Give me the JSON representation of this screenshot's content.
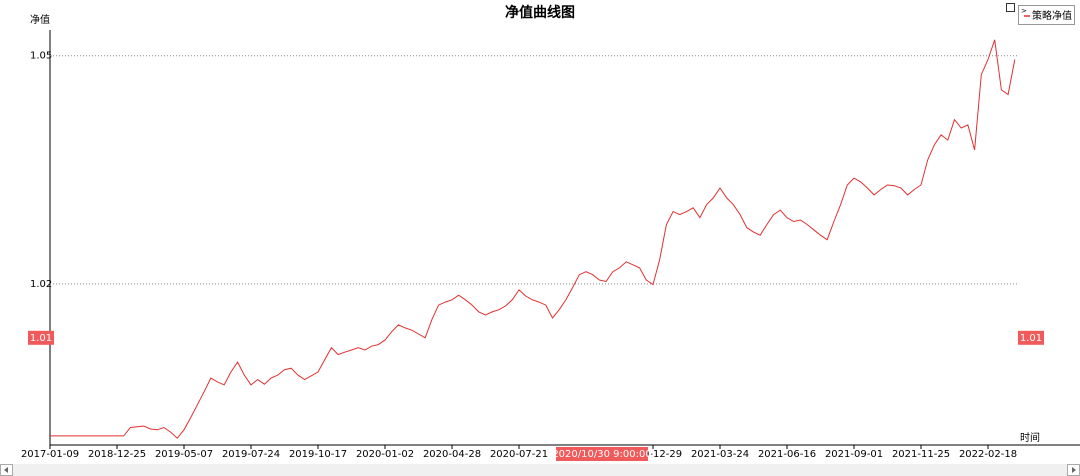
{
  "chart_data": {
    "type": "line",
    "title": "净值曲线图",
    "y_label": "净值",
    "x_label": "时间",
    "categories": [
      "2017-01-09",
      null,
      null,
      null,
      null,
      null,
      null,
      null,
      null,
      null,
      "2018-12-25",
      null,
      null,
      null,
      null,
      null,
      null,
      null,
      null,
      null,
      "2019-05-07",
      null,
      null,
      null,
      null,
      null,
      null,
      null,
      null,
      null,
      "2019-07-24",
      null,
      null,
      null,
      null,
      null,
      null,
      null,
      null,
      null,
      "2019-10-17",
      null,
      null,
      null,
      null,
      null,
      null,
      null,
      null,
      null,
      "2020-01-02",
      null,
      null,
      null,
      null,
      null,
      null,
      null,
      null,
      null,
      "2020-04-28",
      null,
      null,
      null,
      null,
      null,
      null,
      null,
      null,
      null,
      "2020-07-21",
      null,
      null,
      null,
      null,
      null,
      null,
      null,
      null,
      null,
      null,
      null,
      null,
      null,
      null,
      null,
      null,
      null,
      null,
      null,
      "2020-12-29",
      null,
      null,
      null,
      null,
      null,
      null,
      null,
      null,
      null,
      "2021-03-24",
      null,
      null,
      null,
      null,
      null,
      null,
      null,
      null,
      null,
      "2021-06-16",
      null,
      null,
      null,
      null,
      null,
      null,
      null,
      null,
      null,
      "2021-09-01",
      null,
      null,
      null,
      null,
      null,
      null,
      null,
      null,
      null,
      "2021-11-25",
      null,
      null,
      null,
      null,
      null,
      null,
      null,
      null,
      null,
      "2022-02-18",
      null,
      null,
      null,
      null
    ],
    "series": [
      {
        "name": "策略净值",
        "color": "#e03030",
        "values": [
          1.0,
          1.0,
          1.0,
          1.0,
          1.0,
          1.0,
          1.0,
          1.0,
          1.0,
          1.0,
          1.0,
          1.0,
          1.0011,
          1.0012,
          1.0013,
          1.0009,
          1.0008,
          1.0011,
          1.0005,
          0.9997,
          1.0008,
          1.0024,
          1.0041,
          1.0058,
          1.0076,
          1.0071,
          1.0067,
          1.0084,
          1.0097,
          1.008,
          1.0067,
          1.0074,
          1.0068,
          1.0076,
          1.008,
          1.0087,
          1.0089,
          1.008,
          1.0074,
          1.0079,
          1.0084,
          1.01,
          1.0116,
          1.0107,
          1.011,
          1.0113,
          1.0116,
          1.0113,
          1.0118,
          1.012,
          1.0126,
          1.0137,
          1.0146,
          1.0142,
          1.0139,
          1.0134,
          1.0129,
          1.0153,
          1.0172,
          1.0176,
          1.0179,
          1.0185,
          1.0179,
          1.0172,
          1.0163,
          1.0159,
          1.0163,
          1.0166,
          1.0171,
          1.0179,
          1.0192,
          1.0184,
          1.0179,
          1.0176,
          1.0172,
          1.0155,
          1.0166,
          1.0179,
          1.0195,
          1.0212,
          1.0216,
          1.0212,
          1.0205,
          1.0203,
          1.0216,
          1.0221,
          1.0229,
          1.0225,
          1.0221,
          1.0205,
          1.0199,
          1.0232,
          1.0278,
          1.0295,
          1.0291,
          1.0295,
          1.03,
          1.0287,
          1.0304,
          1.0313,
          1.0326,
          1.0313,
          1.0304,
          1.0291,
          1.0274,
          1.0268,
          1.0264,
          1.0278,
          1.0291,
          1.0297,
          1.0287,
          1.0282,
          1.0284,
          1.0278,
          1.0271,
          1.0264,
          1.0258,
          1.0282,
          1.0304,
          1.033,
          1.0339,
          1.0334,
          1.0326,
          1.0317,
          1.0324,
          1.033,
          1.0329,
          1.0326,
          1.0317,
          1.0324,
          1.033,
          1.0363,
          1.0383,
          1.0396,
          1.0389,
          1.0416,
          1.0405,
          1.0409,
          1.0376,
          1.0475,
          1.0495,
          1.0521,
          1.0455,
          1.0449,
          1.0495
        ]
      }
    ],
    "ylim": [
      0.9988,
      1.0547
    ],
    "yticks": [
      1.02,
      1.05
    ],
    "grid": true,
    "crosshair": {
      "value": 1.0129,
      "value_label": "1.01",
      "x_label": "2020/10/30 9:00:00"
    }
  }
}
